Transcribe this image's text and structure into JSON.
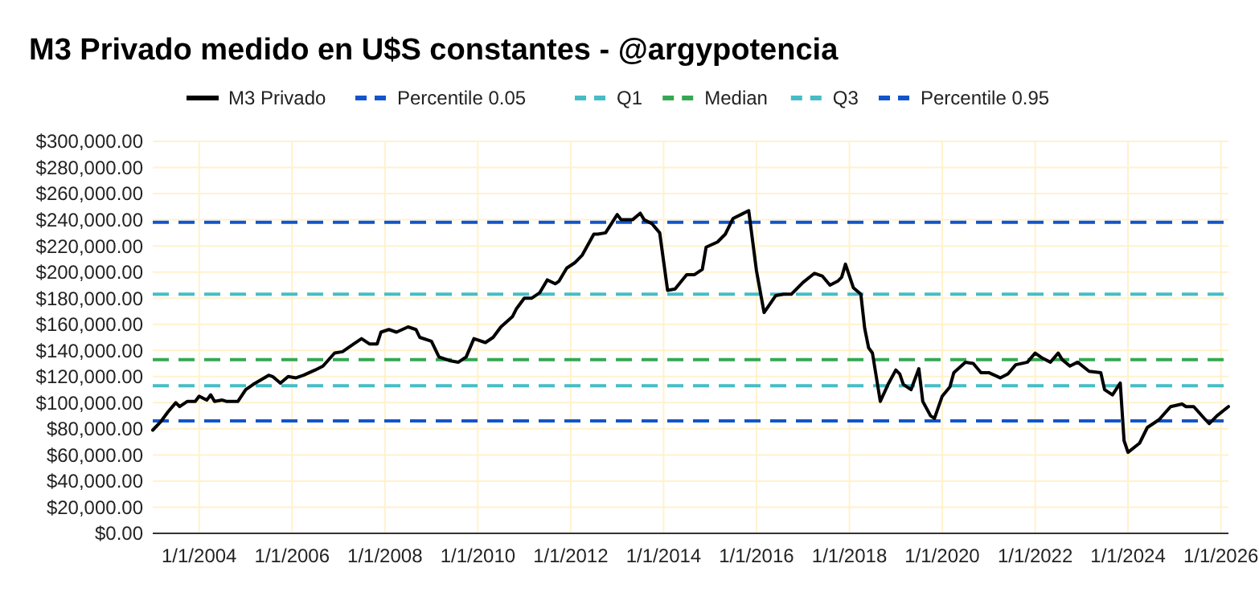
{
  "chart_data": {
    "type": "line",
    "title": "M3 Privado medido en U$S constantes - @argypotencia",
    "x": [
      "2003-01",
      "2003-03",
      "2003-05",
      "2003-07",
      "2003-08",
      "2003-10",
      "2003-12",
      "2004-01",
      "2004-03",
      "2004-04",
      "2004-05",
      "2004-07",
      "2004-08",
      "2004-11",
      "2005-01",
      "2005-03",
      "2005-07",
      "2005-08",
      "2005-10",
      "2005-12",
      "2006-02",
      "2006-04",
      "2006-07",
      "2006-09",
      "2006-12",
      "2007-02",
      "2007-05",
      "2007-07",
      "2007-09",
      "2007-11",
      "2007-12",
      "2008-02",
      "2008-04",
      "2008-07",
      "2008-09",
      "2008-10",
      "2009-01",
      "2009-03",
      "2009-06",
      "2009-08",
      "2009-10",
      "2009-12",
      "2010-03",
      "2010-05",
      "2010-07",
      "2010-10",
      "2010-11",
      "2011-01",
      "2011-03",
      "2011-05",
      "2011-07",
      "2011-09",
      "2011-10",
      "2011-12",
      "2012-02",
      "2012-04",
      "2012-07",
      "2012-08",
      "2012-10",
      "2013-01",
      "2013-02",
      "2013-05",
      "2013-07",
      "2013-08",
      "2013-10",
      "2013-12",
      "2014-02",
      "2014-04",
      "2014-07",
      "2014-09",
      "2014-11",
      "2014-12",
      "2015-03",
      "2015-05",
      "2015-07",
      "2015-09",
      "2015-11",
      "2016-01",
      "2016-03",
      "2016-06",
      "2016-08",
      "2016-10",
      "2017-01",
      "2017-04",
      "2017-06",
      "2017-08",
      "2017-10",
      "2017-11",
      "2017-12",
      "2018-02",
      "2018-04",
      "2018-05",
      "2018-06",
      "2018-07",
      "2018-09",
      "2018-11",
      "2019-01",
      "2019-02",
      "2019-03",
      "2019-05",
      "2019-07",
      "2019-08",
      "2019-10",
      "2019-11",
      "2020-01",
      "2020-03",
      "2020-04",
      "2020-07",
      "2020-09",
      "2020-11",
      "2021-01",
      "2021-04",
      "2021-06",
      "2021-08",
      "2021-11",
      "2022-01",
      "2022-03",
      "2022-05",
      "2022-07",
      "2022-08",
      "2022-10",
      "2022-12",
      "2023-03",
      "2023-06",
      "2023-07",
      "2023-09",
      "2023-11",
      "2023-12",
      "2024-01",
      "2024-04",
      "2024-06",
      "2024-09",
      "2024-12",
      "2025-03",
      "2025-04",
      "2025-06",
      "2025-09",
      "2025-10",
      "2025-12",
      "2026-03"
    ],
    "series": [
      {
        "name": "M3 Privado",
        "color": "#000000",
        "values": [
          79000,
          85000,
          93000,
          100000,
          97000,
          101000,
          101000,
          105000,
          102000,
          106000,
          101000,
          102000,
          101000,
          101000,
          110000,
          114000,
          121000,
          120000,
          115000,
          120000,
          119000,
          121000,
          125000,
          128000,
          138000,
          139000,
          145000,
          149000,
          145000,
          145000,
          154000,
          156000,
          154000,
          158000,
          156000,
          150000,
          147000,
          135000,
          132000,
          131000,
          135000,
          149000,
          146000,
          150000,
          158000,
          166000,
          172000,
          180000,
          180000,
          184000,
          194000,
          191000,
          193000,
          203000,
          207000,
          213000,
          229000,
          229000,
          230000,
          244000,
          240000,
          240000,
          245000,
          240000,
          237000,
          230000,
          186000,
          187000,
          198000,
          198000,
          202000,
          219000,
          223000,
          229000,
          241000,
          244000,
          247000,
          201000,
          169000,
          182000,
          183000,
          183000,
          192000,
          199000,
          197000,
          190000,
          193000,
          196000,
          206000,
          188000,
          183000,
          157000,
          142000,
          138000,
          101000,
          114000,
          125000,
          122000,
          114000,
          110000,
          126000,
          101000,
          90000,
          88000,
          105000,
          112000,
          123000,
          131000,
          130000,
          123000,
          123000,
          119000,
          122000,
          129000,
          131000,
          138000,
          134000,
          131000,
          138000,
          133000,
          128000,
          131000,
          124000,
          123000,
          110000,
          106000,
          115000,
          71000,
          62000,
          69000,
          81000,
          87000,
          97000,
          99000,
          97000,
          97000,
          87000,
          84000,
          90000,
          97000
        ]
      }
    ],
    "ref_lines": [
      {
        "axis": "y",
        "value": 86000,
        "label": "Percentile 0.05",
        "color": "#1155cc",
        "line_style": "dashed"
      },
      {
        "axis": "y",
        "value": 113000,
        "label": "Q1",
        "color": "#46bdc6",
        "line_style": "dashed"
      },
      {
        "axis": "y",
        "value": 133000,
        "label": "Median",
        "color": "#34a853",
        "line_style": "dashed"
      },
      {
        "axis": "y",
        "value": 183000,
        "label": "Q3",
        "color": "#46bdc6",
        "line_style": "dashed"
      },
      {
        "axis": "y",
        "value": 238000,
        "label": "Percentile 0.95",
        "color": "#1155cc",
        "line_style": "dashed"
      }
    ],
    "xlim": [
      "2003-01",
      "2026-03"
    ],
    "xticks": [
      {
        "value": "2004-01-01",
        "label": "1/1/2004"
      },
      {
        "value": "2006-01-01",
        "label": "1/1/2006"
      },
      {
        "value": "2008-01-01",
        "label": "1/1/2008"
      },
      {
        "value": "2010-01-01",
        "label": "1/1/2010"
      },
      {
        "value": "2012-01-01",
        "label": "1/1/2012"
      },
      {
        "value": "2014-01-01",
        "label": "1/1/2014"
      },
      {
        "value": "2016-01-01",
        "label": "1/1/2016"
      },
      {
        "value": "2018-01-01",
        "label": "1/1/2018"
      },
      {
        "value": "2020-01-01",
        "label": "1/1/2020"
      },
      {
        "value": "2022-01-01",
        "label": "1/1/2022"
      },
      {
        "value": "2024-01-01",
        "label": "1/1/2024"
      },
      {
        "value": "2026-01-01",
        "label": "1/1/2026"
      }
    ],
    "ylim": [
      0,
      300000
    ],
    "yticks": [
      {
        "value": 0,
        "label": "$0.00"
      },
      {
        "value": 20000,
        "label": "$20,000.00"
      },
      {
        "value": 40000,
        "label": "$40,000.00"
      },
      {
        "value": 60000,
        "label": "$60,000.00"
      },
      {
        "value": 80000,
        "label": "$80,000.00"
      },
      {
        "value": 100000,
        "label": "$100,000.00"
      },
      {
        "value": 120000,
        "label": "$120,000.00"
      },
      {
        "value": 140000,
        "label": "$140,000.00"
      },
      {
        "value": 160000,
        "label": "$160,000.00"
      },
      {
        "value": 180000,
        "label": "$180,000.00"
      },
      {
        "value": 200000,
        "label": "$200,000.00"
      },
      {
        "value": 220000,
        "label": "$220,000.00"
      },
      {
        "value": 240000,
        "label": "$240,000.00"
      },
      {
        "value": 260000,
        "label": "$260,000.00"
      },
      {
        "value": 280000,
        "label": "$280,000.00"
      },
      {
        "value": 300000,
        "label": "$300,000.00"
      }
    ],
    "grid": true,
    "legend": "top",
    "line_style": "solid",
    "marker": "none"
  }
}
